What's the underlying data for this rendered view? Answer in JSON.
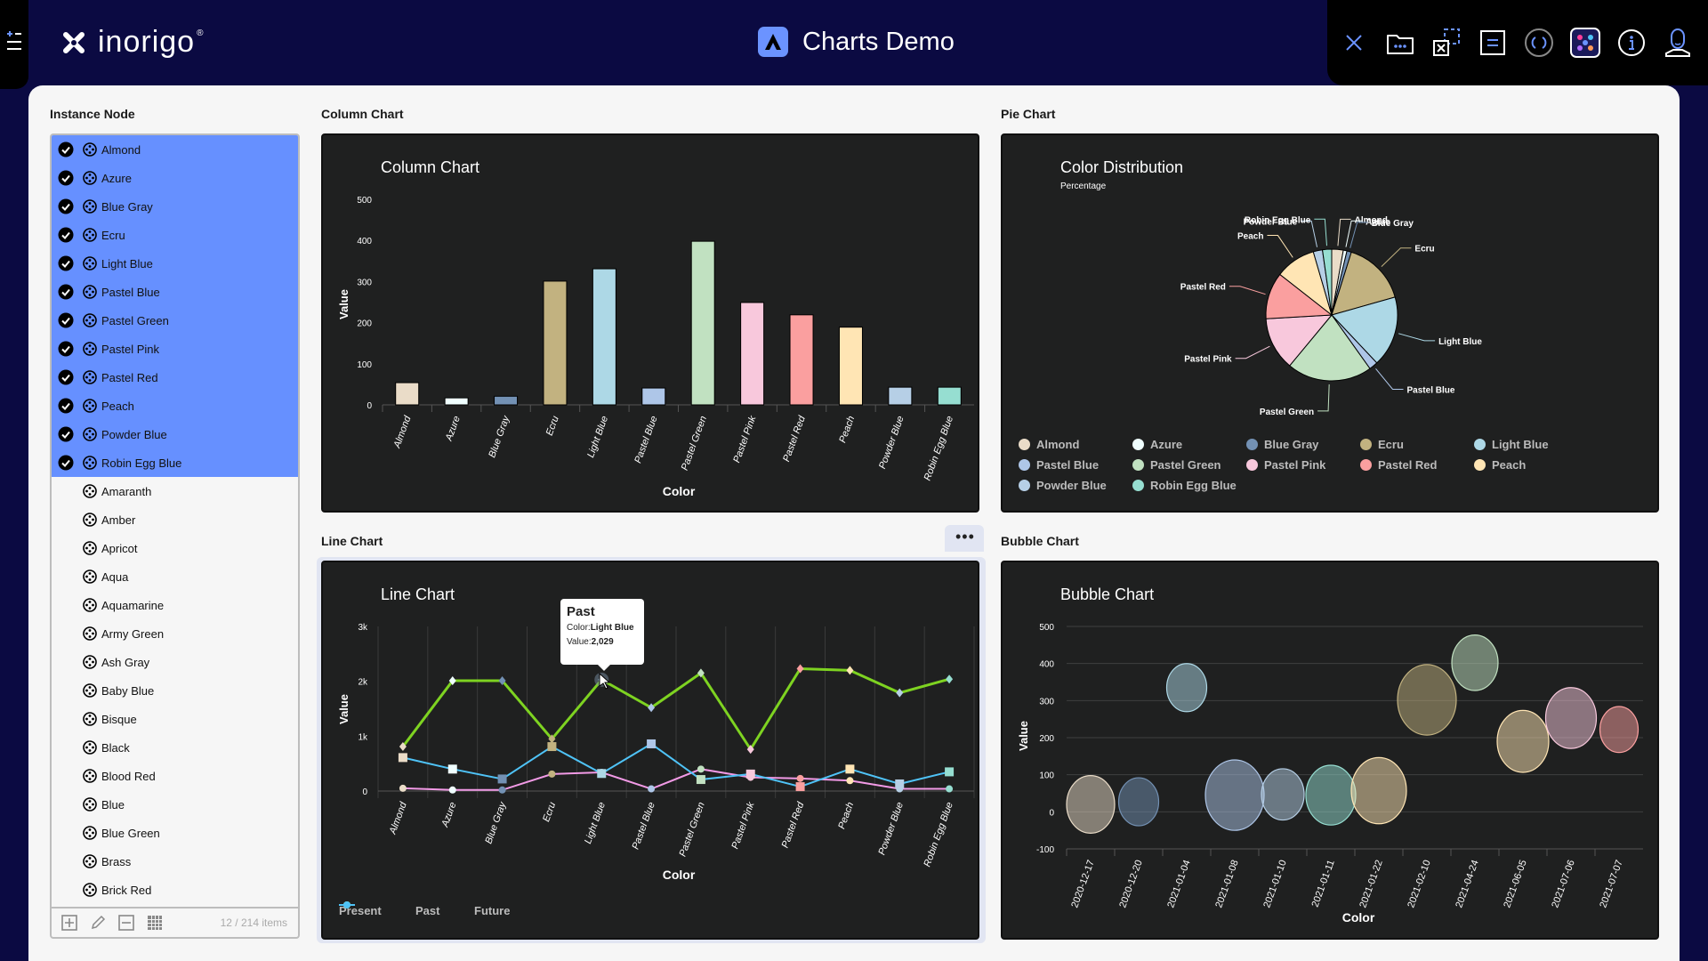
{
  "header": {
    "brand": "inorigo",
    "brand_mark": "®",
    "app_title": "Charts Demo",
    "toolbar_icons": [
      "close-icon",
      "folder-more-icon",
      "selection-remove-icon",
      "form-icon",
      "refresh-icon",
      "app-grid-icon",
      "info-icon",
      "user-icon"
    ]
  },
  "sidebar": {
    "section_title": "Instance Node",
    "items": [
      {
        "label": "Almond",
        "selected": true
      },
      {
        "label": "Azure",
        "selected": true
      },
      {
        "label": "Blue Gray",
        "selected": true
      },
      {
        "label": "Ecru",
        "selected": true
      },
      {
        "label": "Light Blue",
        "selected": true
      },
      {
        "label": "Pastel Blue",
        "selected": true
      },
      {
        "label": "Pastel Green",
        "selected": true
      },
      {
        "label": "Pastel Pink",
        "selected": true
      },
      {
        "label": "Pastel Red",
        "selected": true
      },
      {
        "label": "Peach",
        "selected": true
      },
      {
        "label": "Powder Blue",
        "selected": true
      },
      {
        "label": "Robin Egg Blue",
        "selected": true
      },
      {
        "label": "Amaranth",
        "selected": false
      },
      {
        "label": "Amber",
        "selected": false
      },
      {
        "label": "Apricot",
        "selected": false
      },
      {
        "label": "Aqua",
        "selected": false
      },
      {
        "label": "Aquamarine",
        "selected": false
      },
      {
        "label": "Army Green",
        "selected": false
      },
      {
        "label": "Ash Gray",
        "selected": false
      },
      {
        "label": "Baby Blue",
        "selected": false
      },
      {
        "label": "Bisque",
        "selected": false
      },
      {
        "label": "Black",
        "selected": false
      },
      {
        "label": "Blood Red",
        "selected": false
      },
      {
        "label": "Blue",
        "selected": false
      },
      {
        "label": "Blue Green",
        "selected": false
      },
      {
        "label": "Brass",
        "selected": false
      },
      {
        "label": "Brick Red",
        "selected": false
      }
    ],
    "footer_count": "12 / 214 items",
    "footer_actions": [
      "add-icon",
      "edit-icon",
      "remove-icon",
      "table-icon"
    ]
  },
  "sections": {
    "column": "Column Chart",
    "pie": "Pie Chart",
    "line": "Line Chart",
    "bubble": "Bubble Chart"
  },
  "colors": {
    "Almond": "#eadcc8",
    "Azure": "#f0ffff",
    "Blue Gray": "#7391b4",
    "Ecru": "#c2b280",
    "Light Blue": "#add8e6",
    "Pastel Blue": "#aec6e8",
    "Pastel Green": "#c1e1c1",
    "Pastel Pink": "#f8c8dc",
    "Pastel Red": "#fa9f9f",
    "Peach": "#ffe5b4",
    "Powder Blue": "#b6cfe6",
    "Robin Egg Blue": "#96ded1"
  },
  "tooltip": {
    "series": "Past",
    "color_label": "Color:",
    "color_value": "Light Blue",
    "value_label": "Value:",
    "value_value": "2,029"
  },
  "chart_data": [
    {
      "type": "bar",
      "title": "Column Chart",
      "xlabel": "Color",
      "ylabel": "Value",
      "ylim": [
        0,
        500
      ],
      "yticks": [
        0,
        100,
        200,
        300,
        400,
        500
      ],
      "categories": [
        "Almond",
        "Azure",
        "Blue Gray",
        "Ecru",
        "Light Blue",
        "Pastel Blue",
        "Pastel Green",
        "Pastel Pink",
        "Pastel Red",
        "Peach",
        "Powder Blue",
        "Robin Egg Blue"
      ],
      "values": [
        54,
        17,
        21,
        301,
        331,
        41,
        398,
        249,
        219,
        189,
        43,
        43
      ]
    },
    {
      "type": "pie",
      "title": "Color Distribution",
      "subtitle": "Percentage",
      "categories": [
        "Almond",
        "Azure",
        "Blue Gray",
        "Ecru",
        "Light Blue",
        "Pastel Blue",
        "Pastel Green",
        "Pastel Pink",
        "Pastel Red",
        "Peach",
        "Powder Blue",
        "Robin Egg Blue"
      ],
      "values": [
        54,
        17,
        21,
        301,
        331,
        41,
        398,
        249,
        219,
        189,
        43,
        43
      ],
      "legend": "bottom"
    },
    {
      "type": "line",
      "title": "Line Chart",
      "xlabel": "Color",
      "ylabel": "Value",
      "ylim": [
        0,
        3000
      ],
      "yticks": [
        "0",
        "1k",
        "2k",
        "3k"
      ],
      "categories": [
        "Almond",
        "Azure",
        "Blue Gray",
        "Ecru",
        "Light Blue",
        "Pastel Blue",
        "Pastel Green",
        "Pastel Pink",
        "Pastel Red",
        "Peach",
        "Powder Blue",
        "Robin Egg Blue"
      ],
      "series": [
        {
          "name": "Present",
          "color": "#f29ae6",
          "marker": "circle",
          "values": [
            50,
            20,
            20,
            310,
            340,
            40,
            400,
            250,
            230,
            190,
            40,
            40
          ]
        },
        {
          "name": "Past",
          "color": "#7ed321",
          "marker": "diamond",
          "values": [
            810,
            2010,
            2010,
            950,
            2029,
            1520,
            2150,
            760,
            2230,
            2200,
            1790,
            2040
          ]
        },
        {
          "name": "Future",
          "color": "#4fc3f7",
          "marker": "square",
          "values": [
            610,
            400,
            220,
            810,
            320,
            860,
            210,
            310,
            80,
            400,
            130,
            350
          ]
        }
      ],
      "legend": "bottom-left"
    },
    {
      "type": "scatter",
      "subtype": "bubble",
      "title": "Bubble Chart",
      "xlabel": "Color",
      "ylabel": "Value",
      "ylim": [
        -100,
        500
      ],
      "yticks": [
        -100,
        0,
        100,
        200,
        300,
        400,
        500
      ],
      "x": [
        "2020-12-17",
        "2020-12-20",
        "2021-01-04",
        "2021-01-08",
        "2021-01-10",
        "2021-01-11",
        "2021-01-22",
        "2021-02-10",
        "2021-04-24",
        "2021-06-05",
        "2021-07-06",
        "2021-07-07"
      ],
      "y": [
        20,
        27,
        335,
        45,
        47,
        45,
        57,
        302,
        402,
        190,
        253,
        222
      ],
      "size": [
        54,
        45,
        45,
        66,
        48,
        56,
        62,
        66,
        52,
        58,
        57,
        43
      ],
      "series_colors": [
        "#eadcc8",
        "#7391b4",
        "#add8e6",
        "#aec6e8",
        "#b6cfe6",
        "#96ded1",
        "#ffe5b4",
        "#c2b280",
        "#c1e1c1",
        "#ffe5b4",
        "#f8c8dc",
        "#fa9f9f"
      ]
    }
  ]
}
